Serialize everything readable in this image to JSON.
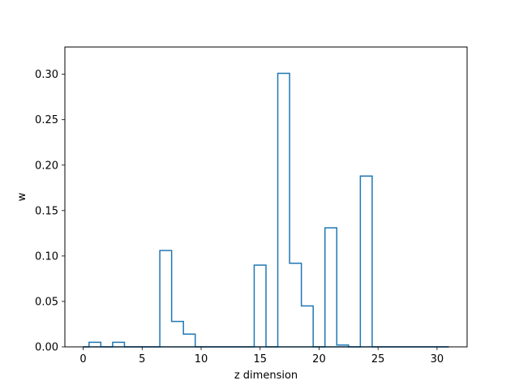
{
  "chart_data": {
    "type": "step",
    "title": "",
    "xlabel": "z dimension",
    "ylabel": "w",
    "xlim": [
      -1.55,
      32.55
    ],
    "ylim": [
      0,
      0.33
    ],
    "x_ticks": [
      0,
      5,
      10,
      15,
      20,
      25,
      30
    ],
    "x_tick_labels": [
      "0",
      "5",
      "10",
      "15",
      "20",
      "25",
      "30"
    ],
    "y_ticks": [
      0.0,
      0.05,
      0.1,
      0.15,
      0.2,
      0.25,
      0.3
    ],
    "y_tick_labels": [
      "0.00",
      "0.05",
      "0.10",
      "0.15",
      "0.20",
      "0.25",
      "0.30"
    ],
    "grid": false,
    "line_color": "#1f77b4",
    "x": [
      0,
      1,
      2,
      3,
      4,
      5,
      6,
      7,
      8,
      9,
      10,
      11,
      12,
      13,
      14,
      15,
      16,
      17,
      18,
      19,
      20,
      21,
      22,
      23,
      24,
      25,
      26,
      27,
      28,
      29,
      30,
      31
    ],
    "values": [
      0.0,
      0.005,
      0.0,
      0.005,
      0.0,
      0.0,
      0.0,
      0.106,
      0.028,
      0.014,
      0.0,
      0.0,
      0.0,
      0.0,
      0.0,
      0.09,
      0.0,
      0.301,
      0.092,
      0.045,
      0.0,
      0.131,
      0.002,
      0.0,
      0.188,
      0.0,
      0.0,
      0.0,
      0.0,
      0.0,
      0.0,
      0.0
    ]
  }
}
